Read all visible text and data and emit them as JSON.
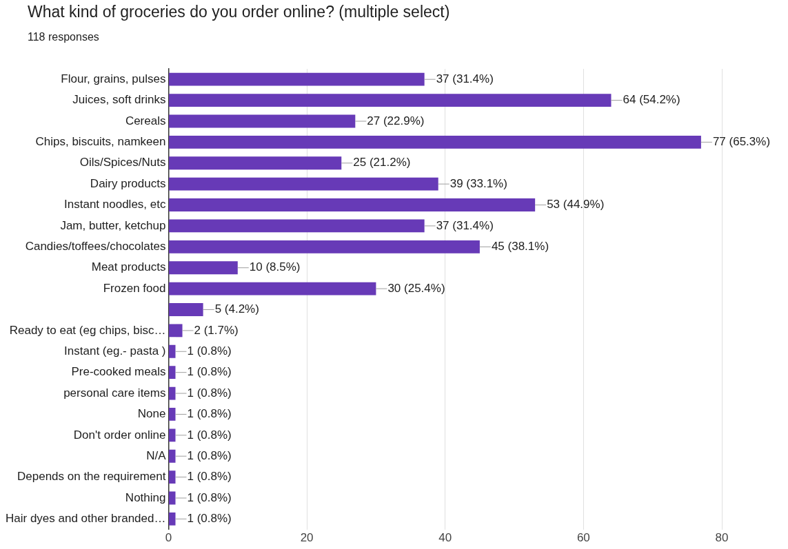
{
  "chart_data": {
    "type": "bar",
    "orientation": "horizontal",
    "title": "What kind of groceries do you order online? (multiple select)",
    "subtitle": "118 responses",
    "categories": [
      "Flour, grains, pulses",
      "Juices, soft drinks",
      "Cereals",
      "Chips, biscuits, namkeen",
      "Oils/Spices/Nuts",
      "Dairy products",
      "Instant noodles, etc",
      "Jam, butter, ketchup",
      "Candies/toffees/chocolates",
      "Meat products",
      "Frozen food",
      null,
      "Ready to eat (eg chips, bisc…",
      "Instant (eg.- pasta )",
      "Pre-cooked meals",
      "personal care items",
      "None",
      "Don't order online",
      "N/A",
      "Depends on the requirement",
      "Nothing",
      "Hair dyes and other branded…"
    ],
    "values": [
      37,
      64,
      27,
      77,
      25,
      39,
      53,
      37,
      45,
      10,
      30,
      5,
      2,
      1,
      1,
      1,
      1,
      1,
      1,
      1,
      1,
      1
    ],
    "value_labels": [
      "37 (31.4%)",
      "64 (54.2%)",
      "27 (22.9%)",
      "77 (65.3%)",
      "25 (21.2%)",
      "39 (33.1%)",
      "53 (44.9%)",
      "37 (31.4%)",
      "45 (38.1%)",
      "10 (8.5%)",
      "30 (25.4%)",
      "5 (4.2%)",
      "2 (1.7%)",
      "1 (0.8%)",
      "1 (0.8%)",
      "1 (0.8%)",
      "1 (0.8%)",
      "1 (0.8%)",
      "1 (0.8%)",
      "1 (0.8%)",
      "1 (0.8%)",
      "1 (0.8%)"
    ],
    "color": "#673ab7",
    "xlim": [
      0,
      80
    ],
    "xticks": [
      0,
      20,
      40,
      60,
      80
    ],
    "grid": "x",
    "legend": false
  }
}
